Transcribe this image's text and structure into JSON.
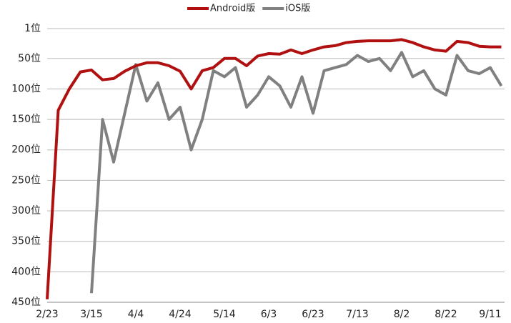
{
  "chart_data": {
    "type": "line",
    "categories": [
      "2/23",
      null,
      null,
      null,
      "3/15",
      null,
      null,
      null,
      "4/4",
      null,
      null,
      null,
      "4/24",
      null,
      null,
      null,
      "5/14",
      null,
      null,
      null,
      "6/3",
      null,
      null,
      null,
      "6/23",
      null,
      null,
      null,
      "7/13",
      null,
      null,
      null,
      "8/2",
      null,
      null,
      null,
      "8/22",
      null,
      null,
      null,
      "9/11",
      null
    ],
    "series": [
      {
        "name": "Android版",
        "color": "#b01010",
        "values": [
          445,
          135,
          100,
          72,
          69,
          85,
          83,
          71,
          62,
          57,
          57,
          62,
          71,
          100,
          70,
          65,
          50,
          50,
          62,
          46,
          42,
          43,
          36,
          42,
          36,
          31,
          29,
          24,
          22,
          21,
          21,
          21,
          19,
          24,
          31,
          36,
          38,
          22,
          24,
          30,
          31,
          31
        ]
      },
      {
        "name": "iOS版",
        "color": "#808080",
        "values": [
          null,
          null,
          null,
          null,
          435,
          150,
          220,
          140,
          60,
          120,
          90,
          150,
          130,
          200,
          150,
          70,
          80,
          65,
          130,
          110,
          80,
          95,
          130,
          80,
          140,
          70,
          65,
          60,
          45,
          55,
          50,
          70,
          40,
          80,
          70,
          100,
          110,
          45,
          70,
          75,
          65,
          95
        ]
      }
    ],
    "ylim": [
      1,
      450
    ],
    "y_inverted": true,
    "yticks": [
      {
        "value": 1,
        "label": "1位"
      },
      {
        "value": 50,
        "label": "50位"
      },
      {
        "value": 100,
        "label": "100位"
      },
      {
        "value": 150,
        "label": "150位"
      },
      {
        "value": 200,
        "label": "200位"
      },
      {
        "value": 250,
        "label": "250位"
      },
      {
        "value": 300,
        "label": "300位"
      },
      {
        "value": 350,
        "label": "350位"
      },
      {
        "value": 400,
        "label": "400位"
      },
      {
        "value": 450,
        "label": "450位"
      }
    ],
    "grid": true,
    "legend": "top"
  }
}
